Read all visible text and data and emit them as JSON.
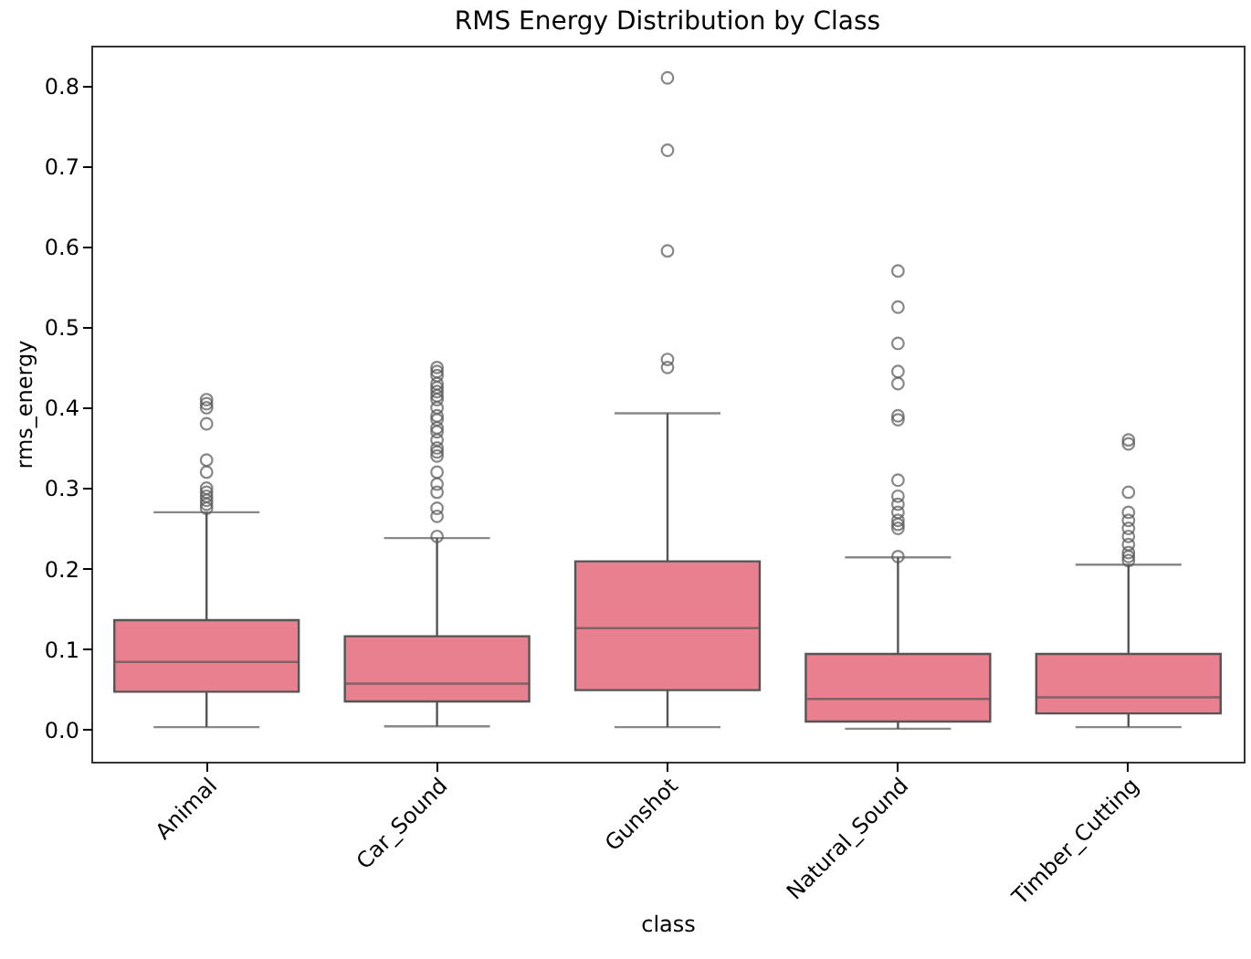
{
  "chart_data": {
    "type": "box",
    "title": "RMS Energy Distribution by Class",
    "xlabel": "class",
    "ylabel": "rms_energy",
    "categories": [
      "Animal",
      "Car_Sound",
      "Gunshot",
      "Natural_Sound",
      "Timber_Cutting"
    ],
    "ylim": [
      -0.04,
      0.85
    ],
    "yticks": [
      {
        "value": 0,
        "label": "0.0"
      },
      {
        "value": 0.1,
        "label": "0.1"
      },
      {
        "value": 0.2,
        "label": "0.2"
      },
      {
        "value": 0.3,
        "label": "0.3"
      },
      {
        "value": 0.4,
        "label": "0.4"
      },
      {
        "value": 0.5,
        "label": "0.5"
      },
      {
        "value": 0.6,
        "label": "0.6"
      },
      {
        "value": 0.7,
        "label": "0.7"
      },
      {
        "value": 0.8,
        "label": "0.8"
      }
    ],
    "grid": false,
    "series": [
      {
        "color": "#e8808f",
        "boxes": [
          {
            "low": 0.003,
            "q1": 0.047,
            "median": 0.084,
            "q3": 0.136,
            "high": 0.27,
            "outliers": [
              0.41,
              0.405,
              0.4,
              0.38,
              0.335,
              0.32,
              0.3,
              0.295,
              0.29,
              0.285,
              0.28,
              0.275
            ]
          },
          {
            "low": 0.004,
            "q1": 0.035,
            "median": 0.057,
            "q3": 0.116,
            "high": 0.238,
            "outliers": [
              0.45,
              0.445,
              0.44,
              0.43,
              0.425,
              0.42,
              0.415,
              0.41,
              0.4,
              0.39,
              0.385,
              0.375,
              0.37,
              0.36,
              0.35,
              0.345,
              0.34,
              0.32,
              0.305,
              0.295,
              0.275,
              0.265,
              0.24
            ]
          },
          {
            "low": 0.003,
            "q1": 0.049,
            "median": 0.126,
            "q3": 0.209,
            "high": 0.393,
            "outliers": [
              0.81,
              0.72,
              0.595,
              0.46,
              0.45
            ]
          },
          {
            "low": 0.001,
            "q1": 0.01,
            "median": 0.038,
            "q3": 0.094,
            "high": 0.214,
            "outliers": [
              0.57,
              0.525,
              0.48,
              0.445,
              0.43,
              0.39,
              0.385,
              0.31,
              0.29,
              0.28,
              0.27,
              0.26,
              0.255,
              0.25,
              0.215
            ]
          },
          {
            "low": 0.003,
            "q1": 0.02,
            "median": 0.04,
            "q3": 0.094,
            "high": 0.205,
            "outliers": [
              0.36,
              0.355,
              0.295,
              0.27,
              0.26,
              0.25,
              0.24,
              0.23,
              0.22,
              0.215,
              0.21
            ]
          }
        ]
      }
    ]
  }
}
